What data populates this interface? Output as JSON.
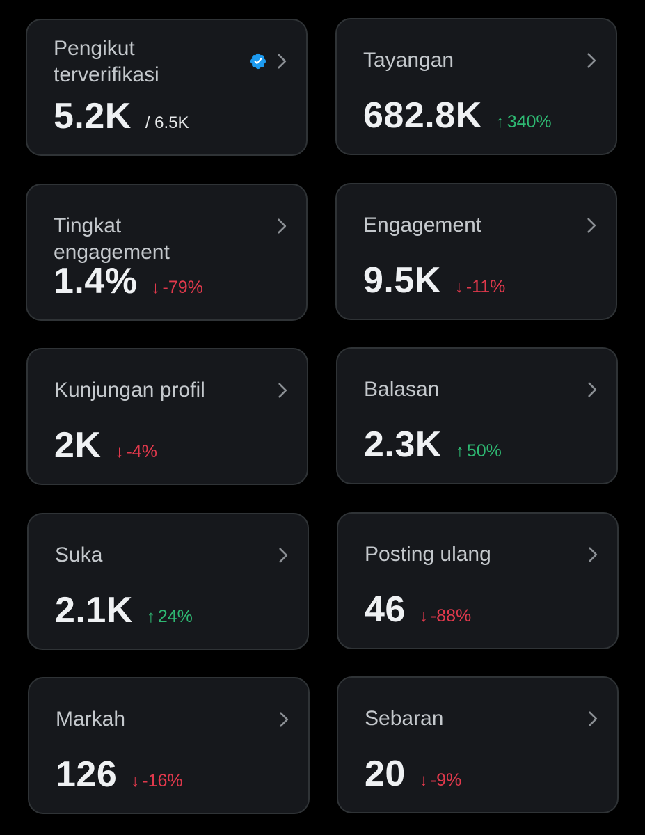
{
  "colors": {
    "background": "#000000",
    "card": "#16181c",
    "card_border": "#2f3336",
    "positive": "#2eb872",
    "negative": "#e0394c",
    "verified": "#1d9bf0"
  },
  "icons": {
    "chevron": "chevron-right-icon",
    "verified": "verified-badge-icon",
    "up": "arrow-up-icon",
    "down": "arrow-down-icon"
  },
  "cards": [
    {
      "label": "Pengikut terverifikasi",
      "value": "5.2K",
      "total": "/ 6.5K",
      "verified": true
    },
    {
      "label": "Tayangan",
      "value": "682.8K",
      "change": "340%",
      "direction": "up",
      "arrow": "↑"
    },
    {
      "label": "Tingkat engagement",
      "value": "1.4%",
      "change": "-79%",
      "direction": "down",
      "arrow": "↓"
    },
    {
      "label": "Engagement",
      "value": "9.5K",
      "change": "-11%",
      "direction": "down",
      "arrow": "↓"
    },
    {
      "label": "Kunjungan profil",
      "value": "2K",
      "change": "-4%",
      "direction": "down",
      "arrow": "↓"
    },
    {
      "label": "Balasan",
      "value": "2.3K",
      "change": "50%",
      "direction": "up",
      "arrow": "↑"
    },
    {
      "label": "Suka",
      "value": "2.1K",
      "change": "24%",
      "direction": "up",
      "arrow": "↑"
    },
    {
      "label": "Posting ulang",
      "value": "46",
      "change": "-88%",
      "direction": "down",
      "arrow": "↓"
    },
    {
      "label": "Markah",
      "value": "126",
      "change": "-16%",
      "direction": "down",
      "arrow": "↓"
    },
    {
      "label": "Sebaran",
      "value": "20",
      "change": "-9%",
      "direction": "down",
      "arrow": "↓"
    }
  ]
}
